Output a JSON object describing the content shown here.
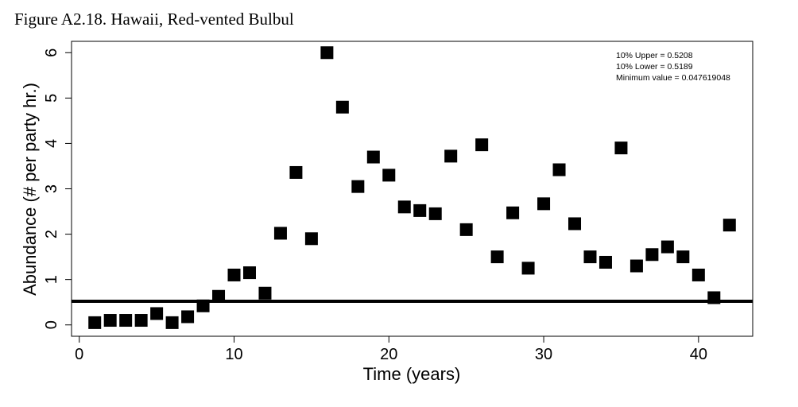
{
  "figure_title": "Figure A2.18. Hawaii, Red-vented Bulbul",
  "notes": [
    "10% Upper =  0.5208",
    "10% Lower =  0.5189",
    "Minimum value =  0.047619048"
  ],
  "colors": {
    "marker": "#000000",
    "line": "#000000",
    "background": "#ffffff"
  },
  "chart_data": {
    "type": "scatter",
    "title": "",
    "xlabel": "Time (years)",
    "ylabel": "Abundance (# per party hr.)",
    "xlim": [
      -0.5,
      43.5
    ],
    "ylim": [
      -0.25,
      6.25
    ],
    "xticks": [
      0,
      10,
      20,
      30,
      40
    ],
    "yticks": [
      0,
      1,
      2,
      3,
      4,
      5,
      6
    ],
    "marker": "square",
    "grid": false,
    "reference_line": {
      "y": 0.52
    },
    "x": [
      1,
      2,
      3,
      4,
      5,
      6,
      7,
      8,
      9,
      10,
      11,
      12,
      13,
      14,
      15,
      16,
      17,
      18,
      19,
      20,
      21,
      22,
      23,
      24,
      25,
      26,
      27,
      28,
      29,
      30,
      31,
      32,
      33,
      34,
      35,
      36,
      37,
      38,
      39,
      40,
      41,
      42
    ],
    "y": [
      0.05,
      0.1,
      0.1,
      0.1,
      0.25,
      0.05,
      0.18,
      0.42,
      0.63,
      1.1,
      1.15,
      0.7,
      2.02,
      3.36,
      1.9,
      6.0,
      4.8,
      3.05,
      3.7,
      3.3,
      2.6,
      2.52,
      2.45,
      3.72,
      2.1,
      3.97,
      1.5,
      2.47,
      1.25,
      2.67,
      3.42,
      2.23,
      1.5,
      1.38,
      3.9,
      1.3,
      1.55,
      1.72,
      1.5,
      1.1,
      0.6,
      2.2
    ]
  }
}
